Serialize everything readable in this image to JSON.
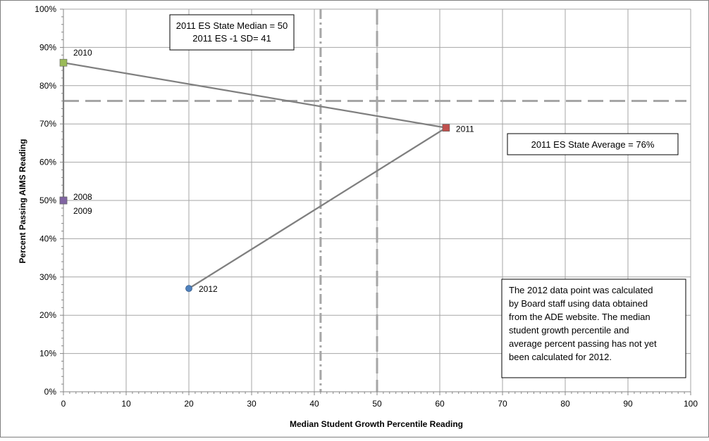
{
  "chart_data": {
    "type": "scatter",
    "xlabel": "Median Student Growth Percentile Reading",
    "ylabel": "Percent Passing AIMS Reading",
    "xlim": [
      0,
      100
    ],
    "ylim": [
      0,
      100
    ],
    "x_ticks": [
      0,
      10,
      20,
      30,
      40,
      50,
      60,
      70,
      80,
      90,
      100
    ],
    "y_ticks": [
      0,
      10,
      20,
      30,
      40,
      50,
      60,
      70,
      80,
      90,
      100
    ],
    "y_tick_labels": [
      "0%",
      "10%",
      "20%",
      "30%",
      "40%",
      "50%",
      "60%",
      "70%",
      "80%",
      "90%",
      "100%"
    ],
    "grid": true,
    "points": [
      {
        "label": "2008",
        "x": 0,
        "y": 50,
        "color": "#8064a2",
        "marker": "square"
      },
      {
        "label": "2009",
        "x": 0,
        "y": 50,
        "color": "#8064a2",
        "marker": "square"
      },
      {
        "label": "2010",
        "x": 0,
        "y": 86,
        "color": "#9bbb59",
        "marker": "square"
      },
      {
        "label": "2011",
        "x": 61,
        "y": 69,
        "color": "#c0504d",
        "marker": "square"
      },
      {
        "label": "2012",
        "x": 20,
        "y": 27,
        "color": "#4f81bd",
        "marker": "circle"
      }
    ],
    "connector_order": [
      "2008",
      "2010",
      "2011",
      "2012"
    ],
    "reference_lines": [
      {
        "axis": "y",
        "value": 76,
        "style": "dashed"
      },
      {
        "axis": "x",
        "value": 50,
        "style": "dashed"
      },
      {
        "axis": "x",
        "value": 41,
        "style": "dash-dot"
      }
    ],
    "annotations": {
      "median_box": [
        "2011 ES State Median = 50",
        "2011 ES  -1 SD= 41"
      ],
      "average_box": "2011 ES State Average = 76%",
      "note_box": [
        "The 2012 data point was calculated",
        "by Board staff using data obtained",
        "from the ADE website.  The median",
        "student growth percentile and",
        "average percent passing has not yet",
        "been calculated for 2012."
      ]
    }
  }
}
